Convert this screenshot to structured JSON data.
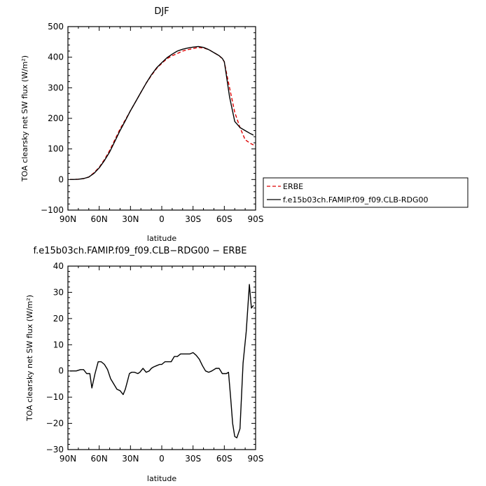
{
  "chart_data": [
    {
      "type": "line",
      "title": "DJF",
      "xlabel": "latitude",
      "ylabel": "TOA clearsky net SW flux (W/m²)",
      "x_ticks": [
        "90N",
        "60N",
        "30N",
        "0",
        "30S",
        "60S",
        "90S"
      ],
      "x_tick_values": [
        90,
        60,
        30,
        0,
        -30,
        -60,
        -90
      ],
      "xlim": [
        90,
        -90
      ],
      "ylim": [
        -100,
        500
      ],
      "y_ticks": [
        -100,
        0,
        100,
        200,
        300,
        400,
        500
      ],
      "y_tick_labels": [
        "−100",
        "0",
        "100",
        "200",
        "300",
        "400",
        "500"
      ],
      "grid": false,
      "legend_placement": "right",
      "series": [
        {
          "name": "ERBE",
          "color": "#dd0000",
          "dash": "dashed",
          "x": [
            88,
            85,
            80,
            75,
            70,
            65,
            60,
            55,
            50,
            45,
            40,
            35,
            30,
            25,
            20,
            15,
            10,
            5,
            0,
            -5,
            -10,
            -15,
            -20,
            -25,
            -30,
            -35,
            -40,
            -45,
            -50,
            -55,
            -58,
            -60,
            -62,
            -65,
            -70,
            -75,
            -80,
            -85,
            -88
          ],
          "y": [
            0,
            0,
            1,
            3,
            8,
            22,
            40,
            65,
            95,
            130,
            165,
            195,
            225,
            255,
            285,
            315,
            340,
            363,
            380,
            395,
            405,
            412,
            420,
            425,
            428,
            432,
            430,
            425,
            415,
            405,
            395,
            385,
            350,
            300,
            220,
            170,
            130,
            118,
            113
          ]
        },
        {
          "name": "f.e15b03ch.FAMIP.f09_f09.CLB-RDG00",
          "color": "#000000",
          "dash": "solid",
          "x": [
            88,
            85,
            80,
            75,
            70,
            65,
            60,
            55,
            50,
            45,
            40,
            35,
            30,
            25,
            20,
            15,
            10,
            5,
            0,
            -5,
            -10,
            -15,
            -20,
            -25,
            -30,
            -35,
            -40,
            -45,
            -50,
            -55,
            -58,
            -60,
            -62,
            -65,
            -70,
            -75,
            -80,
            -85,
            -88
          ],
          "y": [
            0,
            0,
            1,
            3,
            8,
            20,
            38,
            62,
            90,
            125,
            160,
            192,
            225,
            255,
            285,
            315,
            342,
            365,
            382,
            398,
            410,
            420,
            426,
            430,
            433,
            435,
            432,
            425,
            415,
            405,
            396,
            385,
            340,
            270,
            190,
            170,
            160,
            150,
            145
          ]
        }
      ]
    },
    {
      "type": "line",
      "title": "f.e15b03ch.FAMIP.f09_f09.CLB−RDG00 − ERBE",
      "xlabel": "latitude",
      "ylabel": "TOA clearsky net SW flux (W/m²)",
      "x_ticks": [
        "90N",
        "60N",
        "30N",
        "0",
        "30S",
        "60S",
        "90S"
      ],
      "x_tick_values": [
        90,
        60,
        30,
        0,
        -30,
        -60,
        -90
      ],
      "xlim": [
        90,
        -90
      ],
      "ylim": [
        -30,
        40
      ],
      "y_ticks": [
        -30,
        -20,
        -10,
        0,
        10,
        20,
        30,
        40
      ],
      "y_tick_labels": [
        "−30",
        "−20",
        "−10",
        "0",
        "10",
        "20",
        "30",
        "40"
      ],
      "grid": false,
      "series": [
        {
          "color": "#000000",
          "x": [
            88,
            86,
            82,
            78,
            75,
            72,
            69,
            67,
            64,
            61,
            58,
            55,
            52,
            49,
            46,
            43,
            40,
            37,
            35,
            33,
            31,
            29,
            26,
            23,
            21,
            18,
            15,
            12,
            10,
            8,
            5,
            2,
            0,
            -3,
            -6,
            -9,
            -12,
            -15,
            -18,
            -21,
            -24,
            -27,
            -30,
            -33,
            -36,
            -39,
            -42,
            -45,
            -48,
            -52,
            -55,
            -58,
            -60,
            -62,
            -64,
            -66,
            -68,
            -70,
            -72,
            -75,
            -78,
            -81,
            -84,
            -86,
            -88
          ],
          "y": [
            0,
            0,
            0,
            0.5,
            0.5,
            -1,
            -1,
            -6.5,
            -1,
            3.5,
            3.5,
            2.5,
            0.5,
            -3,
            -5,
            -7,
            -7.5,
            -9,
            -7,
            -4,
            -1,
            -0.5,
            -0.5,
            -1,
            -0.5,
            1,
            -0.5,
            0,
            1,
            1.5,
            2,
            2.5,
            2.5,
            3.5,
            3.5,
            3.5,
            5.5,
            5.5,
            6.5,
            6.5,
            6.5,
            6.5,
            7,
            6,
            4.5,
            2,
            0,
            -0.5,
            0,
            1,
            1,
            -1,
            -1,
            -1,
            -0.5,
            -10,
            -20,
            -25,
            -25.5,
            -22,
            3,
            15,
            33,
            24,
            25
          ]
        }
      ]
    }
  ]
}
